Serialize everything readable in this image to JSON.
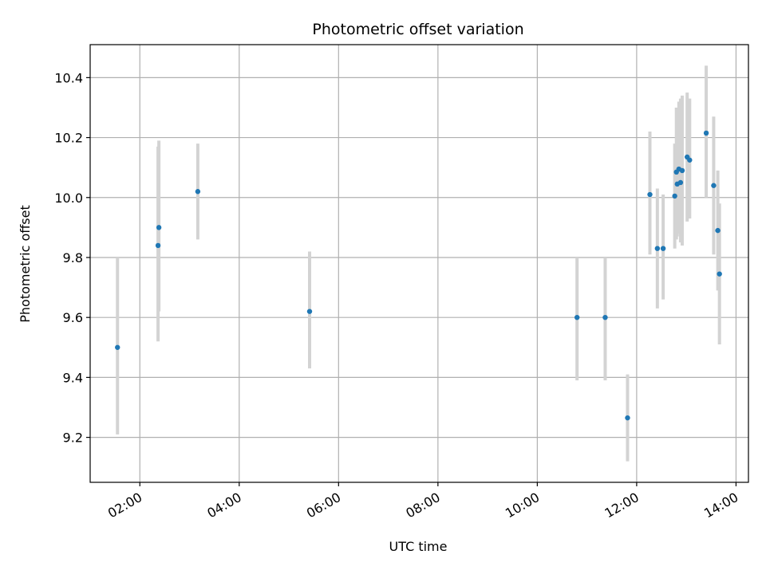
{
  "chart_data": {
    "type": "scatter",
    "title": "Photometric offset variation",
    "xlabel": "UTC time",
    "ylabel": "Photometric offset",
    "x_is_time": true,
    "xlim": [
      "01:00",
      "14:15"
    ],
    "ylim": [
      9.05,
      10.51
    ],
    "x_ticks": [
      "02:00",
      "04:00",
      "06:00",
      "08:00",
      "10:00",
      "12:00",
      "14:00"
    ],
    "y_ticks": [
      9.2,
      9.4,
      9.6,
      9.8,
      10.0,
      10.2,
      10.4
    ],
    "y_tick_labels": [
      "9.2",
      "9.4",
      "9.6",
      "9.8",
      "10.0",
      "10.2",
      "10.4"
    ],
    "grid": true,
    "colors": {
      "point": "#1f77b4",
      "errorbar": "#d3d3d3",
      "grid": "#b0b0b0"
    },
    "series": [
      {
        "points": [
          {
            "x": "01:33",
            "y": 9.5,
            "ylo": 9.21,
            "yhi": 9.8
          },
          {
            "x": "02:22",
            "y": 9.84,
            "ylo": 9.52,
            "yhi": 10.17
          },
          {
            "x": "02:23",
            "y": 9.9,
            "ylo": 9.62,
            "yhi": 10.19
          },
          {
            "x": "03:10",
            "y": 10.02,
            "ylo": 9.86,
            "yhi": 10.18
          },
          {
            "x": "05:25",
            "y": 9.62,
            "ylo": 9.43,
            "yhi": 9.82
          },
          {
            "x": "10:48",
            "y": 9.6,
            "ylo": 9.39,
            "yhi": 9.8
          },
          {
            "x": "11:22",
            "y": 9.6,
            "ylo": 9.39,
            "yhi": 9.8
          },
          {
            "x": "11:49",
            "y": 9.265,
            "ylo": 9.12,
            "yhi": 9.41
          },
          {
            "x": "12:16",
            "y": 10.01,
            "ylo": 9.81,
            "yhi": 10.22
          },
          {
            "x": "12:25",
            "y": 9.83,
            "ylo": 9.63,
            "yhi": 10.03
          },
          {
            "x": "12:32",
            "y": 9.83,
            "ylo": 9.66,
            "yhi": 10.01
          },
          {
            "x": "12:46",
            "y": 10.005,
            "ylo": 9.83,
            "yhi": 10.18
          },
          {
            "x": "12:48",
            "y": 10.085,
            "ylo": 9.86,
            "yhi": 10.3
          },
          {
            "x": "12:49",
            "y": 10.045,
            "ylo": 9.87,
            "yhi": 10.22
          },
          {
            "x": "12:51",
            "y": 10.095,
            "ylo": 9.88,
            "yhi": 10.32
          },
          {
            "x": "12:53",
            "y": 10.05,
            "ylo": 9.85,
            "yhi": 10.33
          },
          {
            "x": "12:55",
            "y": 10.09,
            "ylo": 9.84,
            "yhi": 10.34
          },
          {
            "x": "13:01",
            "y": 10.135,
            "ylo": 9.92,
            "yhi": 10.35
          },
          {
            "x": "13:04",
            "y": 10.125,
            "ylo": 9.93,
            "yhi": 10.33
          },
          {
            "x": "13:24",
            "y": 10.215,
            "ylo": 10.0,
            "yhi": 10.44
          },
          {
            "x": "13:33",
            "y": 10.04,
            "ylo": 9.81,
            "yhi": 10.27
          },
          {
            "x": "13:38",
            "y": 9.89,
            "ylo": 9.69,
            "yhi": 10.09
          },
          {
            "x": "13:40",
            "y": 9.745,
            "ylo": 9.51,
            "yhi": 9.98
          }
        ]
      }
    ]
  }
}
